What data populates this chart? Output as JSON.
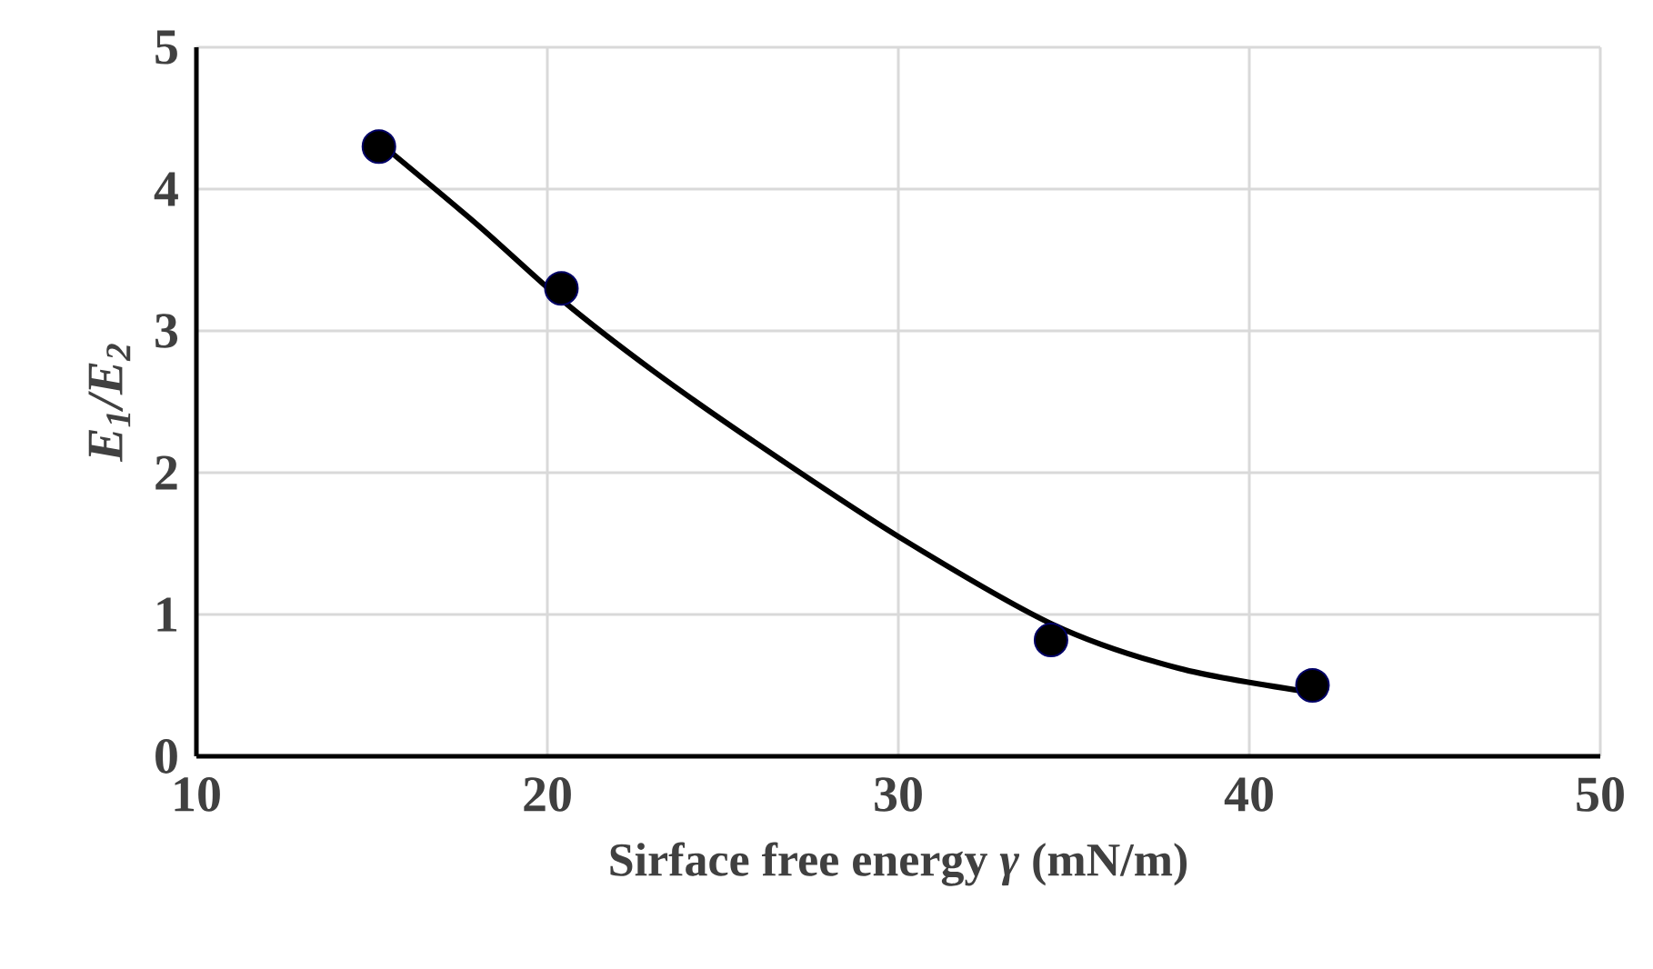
{
  "chart_data": {
    "type": "scatter",
    "xlabel": "Sirface free energy *γ*  (mN/m)",
    "ylabel": "*E*$_{1}$*/E*$_{2}$",
    "xlim": [
      10,
      50
    ],
    "ylim": [
      0,
      5
    ],
    "xticks": [
      10,
      20,
      30,
      40,
      50
    ],
    "yticks": [
      0,
      1,
      2,
      3,
      4,
      5
    ],
    "grid": true,
    "marker": "circle",
    "series": [
      {
        "color": "#000000",
        "x": [
          15.2,
          20.4,
          34.35,
          41.8
        ],
        "values": [
          4.3,
          3.3,
          0.82,
          0.5
        ]
      },
      {
        "type": "line",
        "color": "#000000",
        "line_style": "solid",
        "marker": "none",
        "x": [
          15.2,
          18,
          20.4,
          23,
          26,
          30,
          34.4,
          38,
          41.8
        ],
        "values": [
          4.33,
          3.75,
          3.22,
          2.72,
          2.2,
          1.55,
          0.93,
          0.62,
          0.45
        ]
      }
    ]
  }
}
